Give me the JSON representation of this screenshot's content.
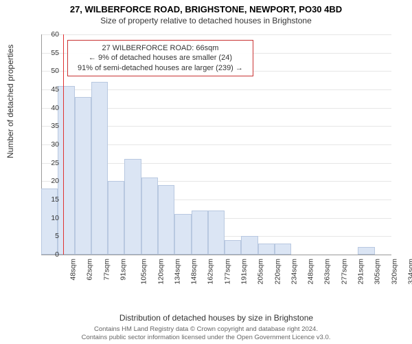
{
  "title": "27, WILBERFORCE ROAD, BRIGHSTONE, NEWPORT, PO30 4BD",
  "subtitle": "Size of property relative to detached houses in Brighstone",
  "chart": {
    "type": "histogram",
    "ylabel": "Number of detached properties",
    "xlabel": "Distribution of detached houses by size in Brighstone",
    "ylim": [
      0,
      60
    ],
    "ytick_step": 5,
    "xticks": [
      "48sqm",
      "62sqm",
      "77sqm",
      "91sqm",
      "105sqm",
      "120sqm",
      "134sqm",
      "148sqm",
      "162sqm",
      "177sqm",
      "191sqm",
      "205sqm",
      "220sqm",
      "234sqm",
      "248sqm",
      "263sqm",
      "277sqm",
      "291sqm",
      "305sqm",
      "320sqm",
      "334sqm"
    ],
    "values": [
      18,
      46,
      43,
      47,
      20,
      26,
      21,
      19,
      11,
      12,
      12,
      4,
      5,
      3,
      3,
      0,
      0,
      0,
      0,
      2,
      0
    ],
    "bar_color": "#dbe5f4",
    "bar_border": "#b8c8e0",
    "grid_color": "#e6e6e6",
    "axis_color": "#999999",
    "background_color": "#ffffff",
    "marker_color": "#e03030",
    "marker_position": 1.3,
    "label_fontsize": 12,
    "tick_fontsize": 10.5,
    "title_fontsize": 13,
    "bar_width_ratio": 1.0
  },
  "annotation": {
    "line1": "27 WILBERFORCE ROAD: 66sqm",
    "line2": "← 9% of detached houses are smaller (24)",
    "line3": "91% of semi-detached houses are larger (239) →",
    "border_color": "#c83232",
    "fontsize": 11
  },
  "footer": {
    "line1": "Contains HM Land Registry data © Crown copyright and database right 2024.",
    "line2": "Contains public sector information licensed under the Open Government Licence v3.0."
  }
}
